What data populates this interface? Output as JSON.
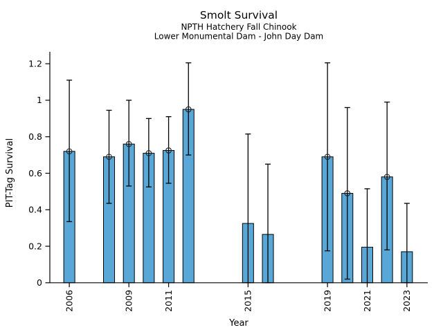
{
  "chart_data": {
    "type": "bar",
    "title": "Smolt Survival",
    "subtitle1": "NPTH Hatchery Fall Chinook",
    "subtitle2": "Lower Monumental Dam - John Day Dam",
    "xlabel": "Year",
    "ylabel": "PIT-Tag Survival",
    "xlim": [
      2005.02,
      2024.05
    ],
    "ylim": [
      0,
      1.265
    ],
    "yticks": [
      0,
      0.2,
      0.4,
      0.6,
      0.8,
      1,
      1.2
    ],
    "ytick_labels": [
      "0",
      "0.2",
      "0.4",
      "0.6",
      "0.8",
      "1",
      "1.2"
    ],
    "xticks": [
      2006,
      2009,
      2011,
      2015,
      2019,
      2021,
      2023
    ],
    "grid": false,
    "legend": null,
    "bar_color": "#58A7D6",
    "bar_edge_color": "#000000",
    "error_color": "#000000",
    "marker_style": "open-circle",
    "series": [
      {
        "year": 2006,
        "value": 0.72,
        "ci_low": 0.335,
        "ci_high": 1.11,
        "marker": true
      },
      {
        "year": 2008,
        "value": 0.69,
        "ci_low": 0.435,
        "ci_high": 0.945,
        "marker": true
      },
      {
        "year": 2009,
        "value": 0.76,
        "ci_low": 0.53,
        "ci_high": 1.0,
        "marker": true
      },
      {
        "year": 2010,
        "value": 0.71,
        "ci_low": 0.525,
        "ci_high": 0.9,
        "marker": true
      },
      {
        "year": 2011,
        "value": 0.725,
        "ci_low": 0.545,
        "ci_high": 0.91,
        "marker": true
      },
      {
        "year": 2012,
        "value": 0.95,
        "ci_low": 0.7,
        "ci_high": 1.205,
        "marker": true
      },
      {
        "year": 2015,
        "value": 0.325,
        "ci_low": 0.0,
        "ci_high": 0.815,
        "marker": false
      },
      {
        "year": 2016,
        "value": 0.265,
        "ci_low": 0.0,
        "ci_high": 0.65,
        "marker": false
      },
      {
        "year": 2019,
        "value": 0.69,
        "ci_low": 0.175,
        "ci_high": 1.205,
        "marker": true
      },
      {
        "year": 2020,
        "value": 0.49,
        "ci_low": 0.02,
        "ci_high": 0.96,
        "marker": true
      },
      {
        "year": 2021,
        "value": 0.195,
        "ci_low": 0.0,
        "ci_high": 0.515,
        "marker": false
      },
      {
        "year": 2022,
        "value": 0.58,
        "ci_low": 0.18,
        "ci_high": 0.99,
        "marker": true
      },
      {
        "year": 2023,
        "value": 0.17,
        "ci_low": 0.0,
        "ci_high": 0.435,
        "marker": false
      }
    ]
  }
}
